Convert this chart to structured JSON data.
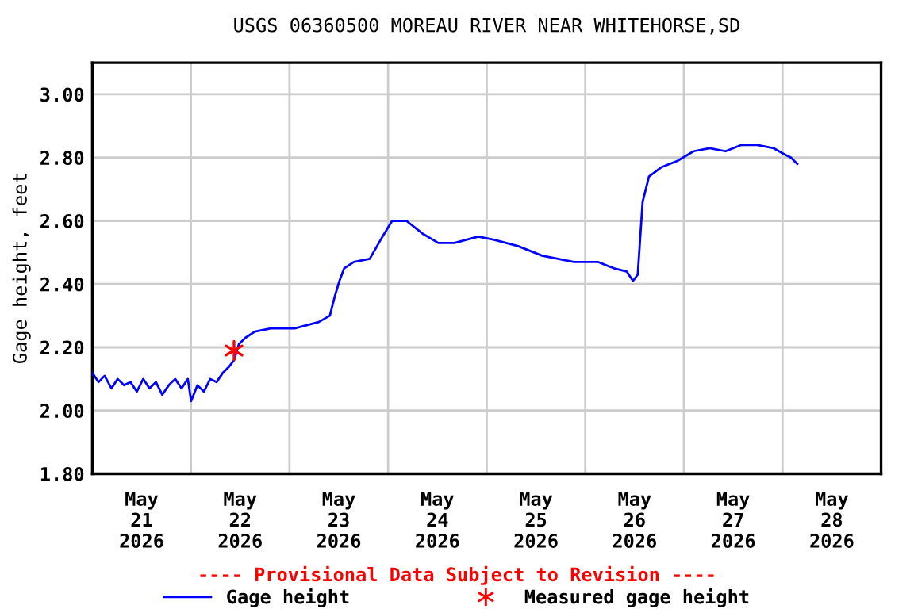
{
  "chart_data": {
    "type": "line",
    "title": "USGS 06360500 MOREAU RIVER NEAR WHITEHORSE,SD",
    "ylabel": "Gage height, feet",
    "annotations": [
      "---- Provisional Data Subject to Revision ----"
    ],
    "xlim": [
      "2026-05-20T12:00",
      "2026-05-28T12:00"
    ],
    "ylim": [
      1.8,
      3.1
    ],
    "xticks": [
      {
        "value": "2026-05-21",
        "label": "May\n21\n2026"
      },
      {
        "value": "2026-05-21T12:00",
        "label": null
      },
      {
        "value": "2026-05-22",
        "label": "May\n22\n2026"
      },
      {
        "value": "2026-05-22T12:00",
        "label": null
      },
      {
        "value": "2026-05-23",
        "label": "May\n23\n2026"
      },
      {
        "value": "2026-05-23T12:00",
        "label": null
      },
      {
        "value": "2026-05-24",
        "label": "May\n24\n2026"
      },
      {
        "value": "2026-05-24T12:00",
        "label": null
      },
      {
        "value": "2026-05-25",
        "label": "May\n25\n2026"
      },
      {
        "value": "2026-05-25T12:00",
        "label": null
      },
      {
        "value": "2026-05-26",
        "label": "May\n26\n2026"
      },
      {
        "value": "2026-05-26T12:00",
        "label": null
      },
      {
        "value": "2026-05-27",
        "label": "May\n27\n2026"
      },
      {
        "value": "2026-05-27T12:00",
        "label": null
      },
      {
        "value": "2026-05-28",
        "label": "May\n28\n2026"
      }
    ],
    "yticks": [
      {
        "value": 1.8,
        "label": "1.80"
      },
      {
        "value": 2.0,
        "label": "2.00"
      },
      {
        "value": 2.2,
        "label": "2.20"
      },
      {
        "value": 2.4,
        "label": "2.40"
      },
      {
        "value": 2.6,
        "label": "2.60"
      },
      {
        "value": 2.8,
        "label": "2.80"
      },
      {
        "value": 3.0,
        "label": "3.00"
      }
    ],
    "grid": true,
    "legend": "bottom",
    "series": [
      {
        "name": "Gage height",
        "color": "#0000ff",
        "marker": "none",
        "x": [
          "2026-05-20T12:00",
          "2026-05-20T13:30",
          "2026-05-20T15:00",
          "2026-05-20T16:40",
          "2026-05-20T18:10",
          "2026-05-20T19:44",
          "2026-05-20T21:17",
          "2026-05-20T22:50",
          "2026-05-21T00:23",
          "2026-05-21T01:56",
          "2026-05-21T03:30",
          "2026-05-21T05:02",
          "2026-05-21T06:36",
          "2026-05-21T08:10",
          "2026-05-21T09:43",
          "2026-05-21T11:15",
          "2026-05-21T12:03",
          "2026-05-21T13:35",
          "2026-05-21T15:09",
          "2026-05-21T16:42",
          "2026-05-21T18:15",
          "2026-05-21T19:48",
          "2026-05-21T21:22",
          "2026-05-21T22:32",
          "2026-05-21T23:41",
          "2026-05-22T01:15",
          "2026-05-22T03:35",
          "2026-05-22T07:28",
          "2026-05-22T13:16",
          "2026-05-22T19:06",
          "2026-05-22T21:49",
          "2026-05-22T23:00",
          "2026-05-23T00:09",
          "2026-05-23T01:19",
          "2026-05-23T03:39",
          "2026-05-23T07:32",
          "2026-05-23T10:38",
          "2026-05-23T12:58",
          "2026-05-23T16:28",
          "2026-05-23T20:21",
          "2026-05-24T00:14",
          "2026-05-24T04:08",
          "2026-05-24T09:56",
          "2026-05-24T13:49",
          "2026-05-24T19:39",
          "2026-05-25T01:28",
          "2026-05-25T09:14",
          "2026-05-25T15:04",
          "2026-05-25T18:58",
          "2026-05-25T22:03",
          "2026-05-25T23:37",
          "2026-05-26T00:46",
          "2026-05-26T01:57",
          "2026-05-26T03:30",
          "2026-05-26T06:36",
          "2026-05-26T10:29",
          "2026-05-26T14:22",
          "2026-05-26T18:16",
          "2026-05-26T22:08",
          "2026-05-27T02:01",
          "2026-05-27T05:54",
          "2026-05-27T09:47",
          "2026-05-27T12:30",
          "2026-05-27T14:04",
          "2026-05-27T15:36"
        ],
        "values": [
          2.12,
          2.09,
          2.11,
          2.07,
          2.1,
          2.08,
          2.09,
          2.06,
          2.1,
          2.07,
          2.09,
          2.05,
          2.08,
          2.1,
          2.07,
          2.1,
          2.03,
          2.08,
          2.06,
          2.1,
          2.09,
          2.12,
          2.14,
          2.16,
          2.21,
          2.23,
          2.25,
          2.26,
          2.26,
          2.28,
          2.3,
          2.36,
          2.41,
          2.45,
          2.47,
          2.48,
          2.55,
          2.6,
          2.6,
          2.56,
          2.53,
          2.53,
          2.55,
          2.54,
          2.52,
          2.49,
          2.47,
          2.47,
          2.45,
          2.44,
          2.41,
          2.43,
          2.66,
          2.74,
          2.77,
          2.79,
          2.82,
          2.83,
          2.82,
          2.84,
          2.84,
          2.83,
          2.81,
          2.8,
          2.78
        ]
      },
      {
        "name": "Measured gage height",
        "color": "#ff0000",
        "type": "scatter",
        "marker": "cross",
        "x": [
          "2026-05-21T22:30"
        ],
        "values": [
          2.19
        ]
      }
    ]
  }
}
